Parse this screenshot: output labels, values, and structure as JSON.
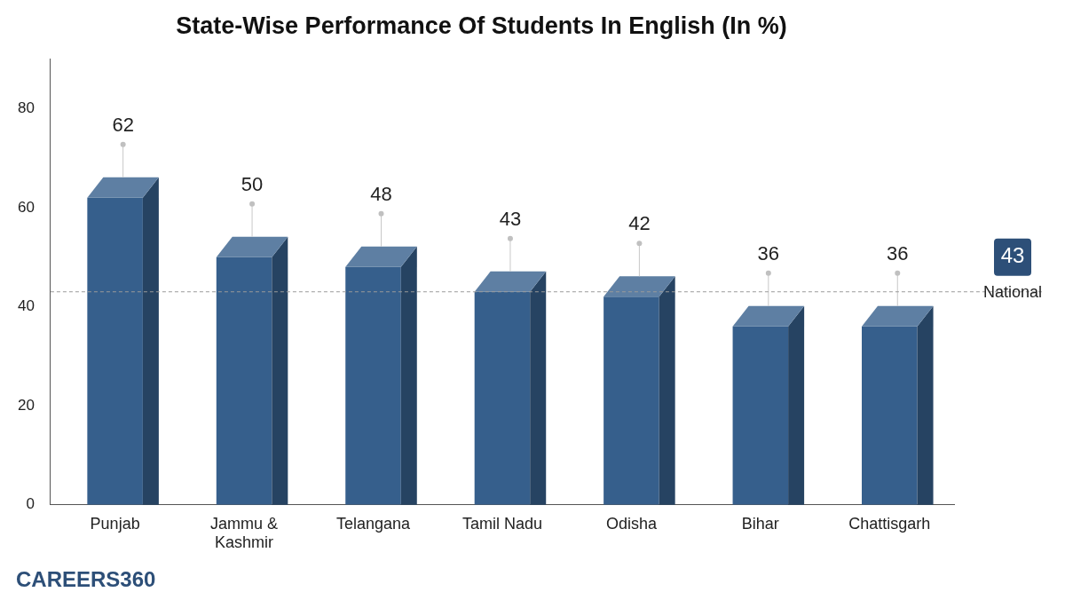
{
  "chart_data": {
    "type": "bar",
    "title": "State-Wise Performance Of Students In English (In %)",
    "categories": [
      "Punjab",
      "Jammu & Kashmir",
      "Telangana",
      "Tamil Nadu",
      "Odisha",
      "Bihar",
      "Chattisgarh"
    ],
    "values": [
      62,
      50,
      48,
      43,
      42,
      36,
      36
    ],
    "color": "#365f8c",
    "ylim": [
      0,
      90
    ],
    "yticks": [
      0,
      20,
      40,
      60,
      80
    ],
    "grid": false,
    "data_labels": true,
    "reference_line": {
      "value": 43,
      "label": "National"
    },
    "logo": "CAREERS360"
  }
}
